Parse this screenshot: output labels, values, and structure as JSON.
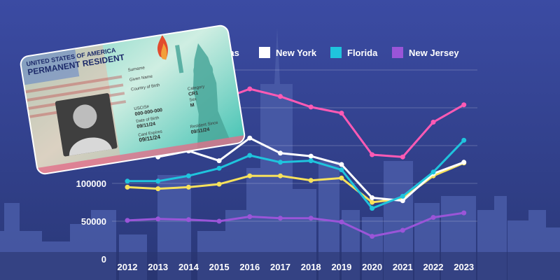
{
  "background": {
    "sky_top": "#3a4aa0",
    "sky_bottom": "#2c3a80",
    "skyline": "#4c5fa6"
  },
  "card_image": {
    "kind": "permanent-resident-card",
    "line1": "UNITED STATES OF AMERICA",
    "line2": "PERMANENT RESIDENT",
    "field_labels": [
      "Surname",
      "Given Name",
      "Country of Birth",
      "Category",
      "USCIS#",
      "Date of Birth",
      "Card Expires",
      "Resident Since",
      "Sex"
    ],
    "uscis_number": "000-000-000",
    "category": "CR1",
    "sex": "M",
    "dob": "09/11/24",
    "expires": "09/11/24",
    "resident_since": "09/11/24"
  },
  "chart_data": {
    "type": "line",
    "title": "",
    "xlabel": "",
    "ylabel": "",
    "categories": [
      "2012",
      "2013",
      "2014",
      "2015",
      "2016",
      "2017",
      "2018",
      "2019",
      "2020",
      "2021",
      "2022",
      "2023"
    ],
    "ylim": [
      0,
      250000
    ],
    "yticks": [
      0,
      50000,
      100000
    ],
    "ytick_labels": [
      "0",
      "50000",
      "100000"
    ],
    "grid": true,
    "legend_position": "top",
    "series": [
      {
        "name": "Texas",
        "color": "#f7e15c",
        "values": [
          95000,
          93000,
          95000,
          99000,
          110000,
          110000,
          104000,
          107000,
          75000,
          80000,
          110000,
          127000
        ]
      },
      {
        "name": "New York",
        "color": "#ffffff",
        "values": [
          null,
          135000,
          143000,
          130000,
          160000,
          140000,
          136000,
          125000,
          81000,
          77000,
          113000,
          128000
        ]
      },
      {
        "name": "Florida",
        "color": "#1fc4dd",
        "values": [
          103000,
          103000,
          110000,
          120000,
          137000,
          128000,
          130000,
          118000,
          67000,
          83000,
          115000,
          157000
        ]
      },
      {
        "name": "New Jersey",
        "color": "#9a55d8",
        "values": [
          51000,
          53000,
          52000,
          50000,
          56000,
          54000,
          54000,
          49000,
          30000,
          38000,
          55000,
          61000
        ]
      },
      {
        "name": "",
        "color": "#ff5ab4",
        "values": [
          null,
          null,
          null,
          210000,
          225000,
          215000,
          201000,
          193000,
          138000,
          135000,
          181000,
          204000
        ]
      }
    ]
  }
}
